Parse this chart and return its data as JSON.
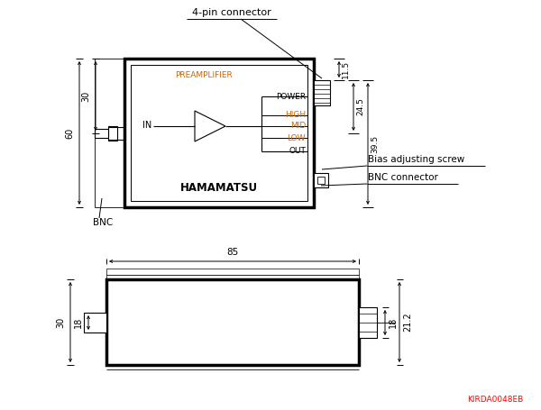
{
  "bg_color": "#ffffff",
  "line_color": "#000000",
  "orange_color": "#cc6600",
  "preamplifier_color": "#cc6600",
  "high_mid_low_color": "#cc6600",
  "fig_width": 6.0,
  "fig_height": 4.55,
  "label_4pin": "4-pin connector",
  "label_bnc_left": "BNC",
  "label_bias": "Bias adjusting screw",
  "label_bnc_right": "BNC connector",
  "label_kirda": "KIRDA0048EB",
  "label_preamplifier": "PREAMPLIFIER",
  "label_power": "POWER",
  "label_high": "HIGH",
  "label_mid": "MID",
  "label_low": "LOW",
  "label_in": "IN",
  "label_out": "OUT",
  "label_hamamatsu": "HAMAMATSU",
  "dim_60": "60",
  "dim_30_top": "30",
  "dim_11_5": "11.5",
  "dim_24_5": "24.5",
  "dim_39_5": "39.5",
  "dim_85": "85",
  "dim_30_bot": "30",
  "dim_18_left": "18",
  "dim_18_right": "18",
  "dim_21_2": "21.2"
}
